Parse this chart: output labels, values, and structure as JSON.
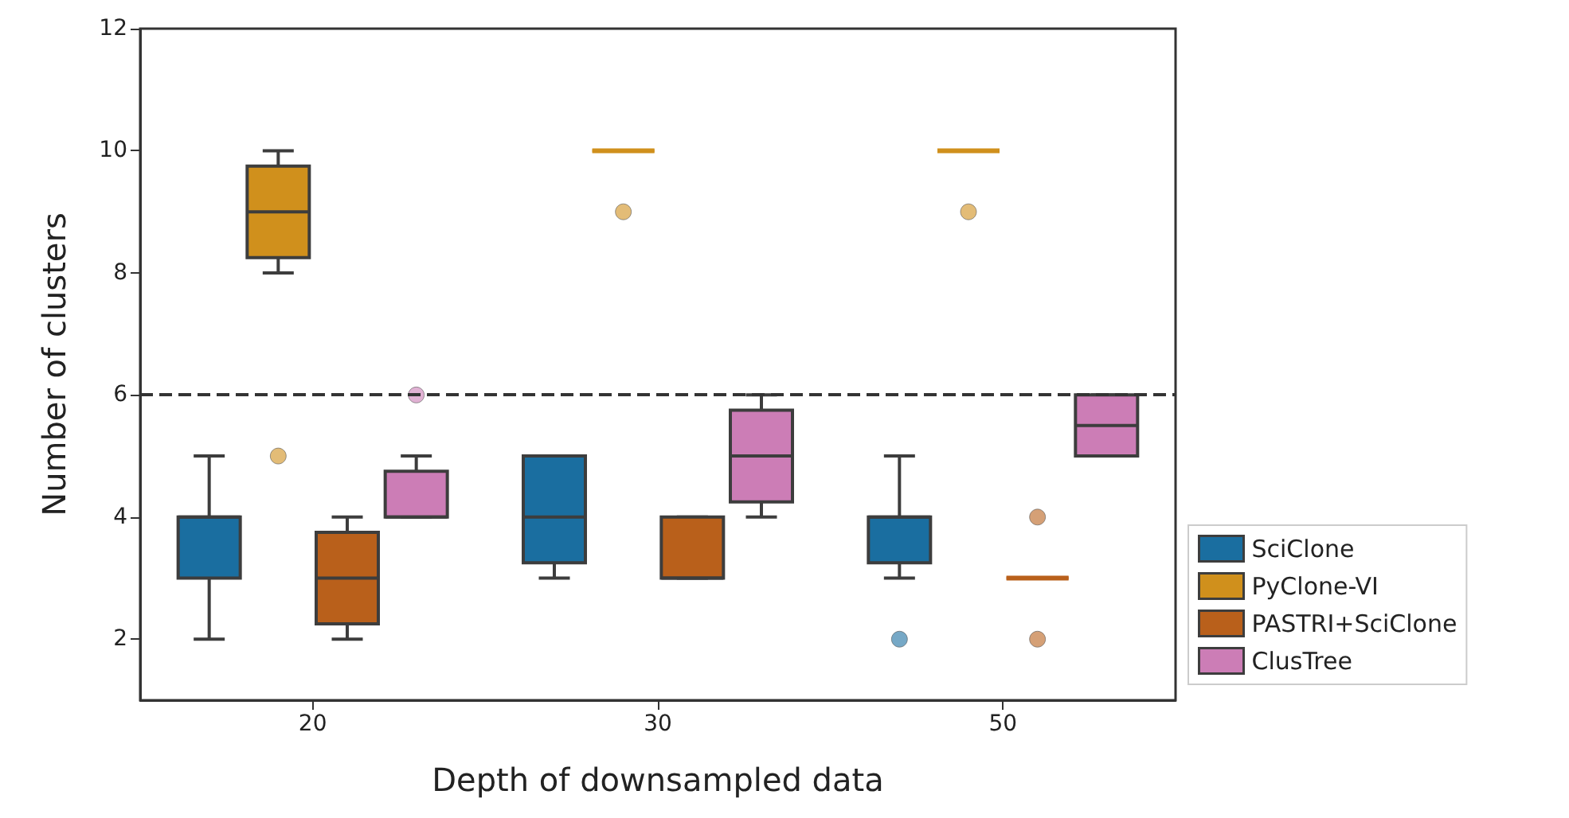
{
  "chart_data": {
    "type": "box",
    "xlabel": "Depth of downsampled data",
    "ylabel": "Number of clusters",
    "categories": [
      "20",
      "30",
      "50"
    ],
    "ylim": [
      1,
      12
    ],
    "yticks": [
      2,
      4,
      6,
      8,
      10,
      12
    ],
    "grid": false,
    "legend": "bottom right",
    "ref_lines": [
      {
        "axis": "y",
        "value": 6,
        "line_style": "dashed",
        "color": "#333333"
      }
    ],
    "series": [
      {
        "name": "SciClone",
        "color": "#1a6ea0",
        "boxes": [
          {
            "low": 2,
            "q1": 3,
            "median": 4,
            "q3": 4,
            "high": 5
          },
          {
            "low": 3,
            "q1": 3.25,
            "median": 4,
            "q3": 5,
            "high": 5
          },
          {
            "low": 3,
            "q1": 3.25,
            "median": 4,
            "q3": 4,
            "high": 5,
            "outliers": [
              2
            ]
          }
        ]
      },
      {
        "name": "PyClone-VI",
        "color": "#d0901c",
        "boxes": [
          {
            "low": 8,
            "q1": 8.25,
            "median": 9,
            "q3": 9.75,
            "high": 10,
            "outliers": [
              5
            ]
          },
          {
            "low": 10,
            "q1": 10,
            "median": 10,
            "q3": 10,
            "high": 10,
            "outliers": [
              9
            ]
          },
          {
            "low": 10,
            "q1": 10,
            "median": 10,
            "q3": 10,
            "high": 10,
            "outliers": [
              9
            ]
          }
        ]
      },
      {
        "name": "PASTRI+SciClone",
        "color": "#b9601b",
        "boxes": [
          {
            "low": 2,
            "q1": 2.25,
            "median": 3,
            "q3": 3.75,
            "high": 4
          },
          {
            "low": 3,
            "q1": 3,
            "median": 3,
            "q3": 4,
            "high": 4
          },
          {
            "low": 3,
            "q1": 3,
            "median": 3,
            "q3": 3,
            "high": 3,
            "outliers": [
              4,
              2
            ]
          }
        ]
      },
      {
        "name": "ClusTree",
        "color": "#cc7db6",
        "boxes": [
          {
            "low": 4,
            "q1": 4,
            "median": 4,
            "q3": 4.75,
            "high": 5,
            "outliers": [
              6
            ]
          },
          {
            "low": 4,
            "q1": 4.25,
            "median": 5,
            "q3": 5.75,
            "high": 6
          },
          {
            "low": 5,
            "q1": 5,
            "median": 5.5,
            "q3": 6,
            "high": 6
          }
        ]
      }
    ]
  }
}
